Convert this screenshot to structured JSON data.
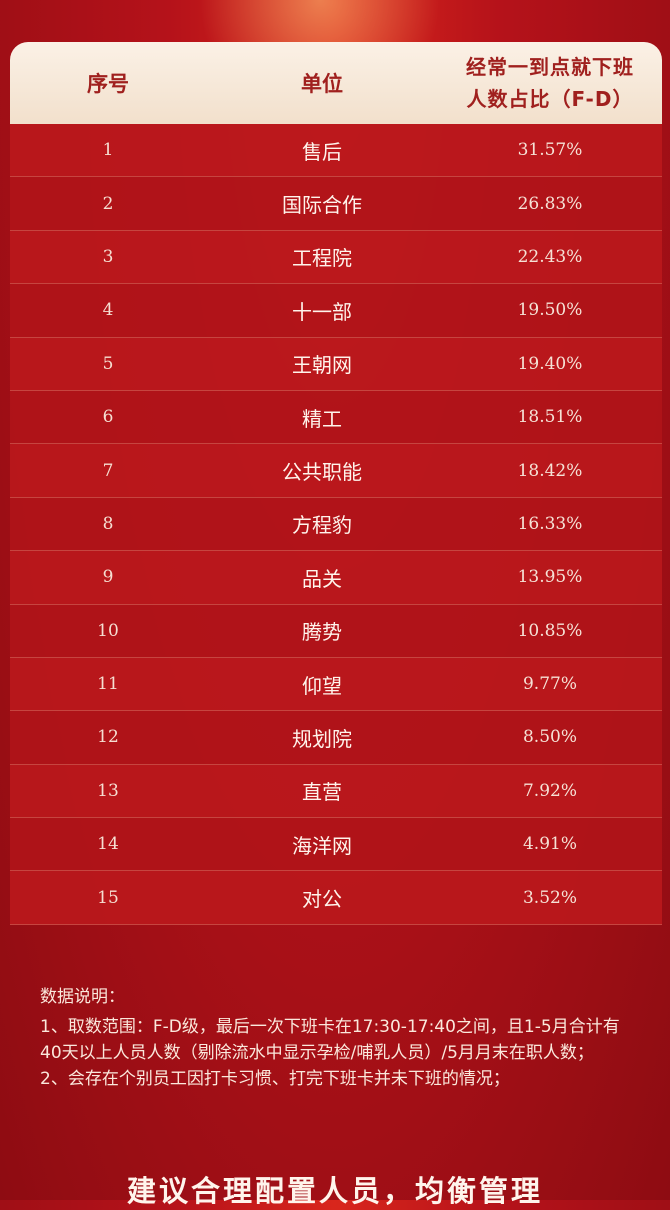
{
  "table": {
    "headers": {
      "no": "序号",
      "unit": "单位",
      "pct_line1": "经常一到点就下班",
      "pct_line2": "人数占比（F-D）"
    },
    "rows": [
      {
        "no": "1",
        "unit": "售后",
        "pct": "31.57%"
      },
      {
        "no": "2",
        "unit": "国际合作",
        "pct": "26.83%"
      },
      {
        "no": "3",
        "unit": "工程院",
        "pct": "22.43%"
      },
      {
        "no": "4",
        "unit": "十一部",
        "pct": "19.50%"
      },
      {
        "no": "5",
        "unit": "王朝网",
        "pct": "19.40%"
      },
      {
        "no": "6",
        "unit": "精工",
        "pct": "18.51%"
      },
      {
        "no": "7",
        "unit": "公共职能",
        "pct": "18.42%"
      },
      {
        "no": "8",
        "unit": "方程豹",
        "pct": "16.33%"
      },
      {
        "no": "9",
        "unit": "品关",
        "pct": "13.95%"
      },
      {
        "no": "10",
        "unit": "腾势",
        "pct": "10.85%"
      },
      {
        "no": "11",
        "unit": "仰望",
        "pct": "9.77%"
      },
      {
        "no": "12",
        "unit": "规划院",
        "pct": "8.50%"
      },
      {
        "no": "13",
        "unit": "直营",
        "pct": "7.92%"
      },
      {
        "no": "14",
        "unit": "海洋网",
        "pct": "4.91%"
      },
      {
        "no": "15",
        "unit": "对公",
        "pct": "3.52%"
      }
    ]
  },
  "notes": {
    "title": "数据说明：",
    "item1": "1、取数范围：F-D级，最后一次下班卡在17:30-17:40之间，且1-5月合计有40天以上人员人数（剔除流水中显示孕检/哺乳人员）/5月月末在职人数；",
    "item2": "2、会存在个别员工因打卡习惯、打完下班卡并未下班的情况；"
  },
  "footer": {
    "text": "建议合理配置人员，均衡管理"
  }
}
